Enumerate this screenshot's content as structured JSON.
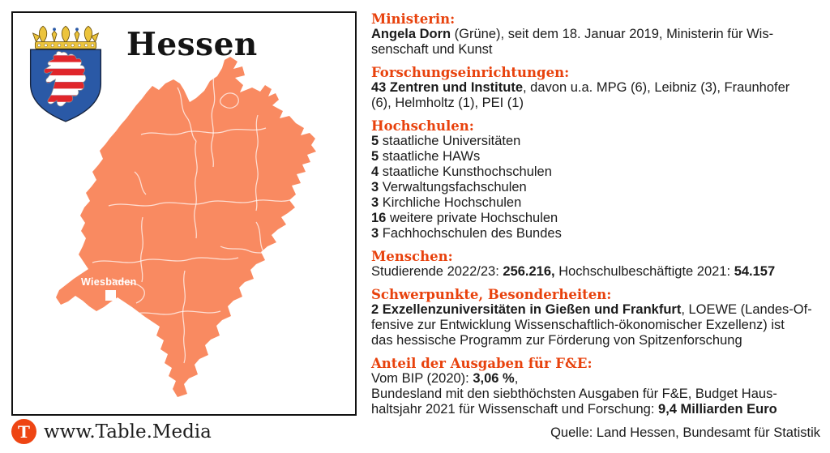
{
  "colors": {
    "map-fill": "#F98A61",
    "map-line": "#FFFFFF",
    "accent": "#E8420D",
    "shield-blue": "#2A59A6",
    "stripe-red": "#E0262B",
    "crown-gold": "#ECC43C",
    "logo-orange": "#EE4513",
    "ink": "#1B1B1B",
    "panel-border": "#111111"
  },
  "panel": {
    "region_name": "Hessen",
    "map": {
      "city_label": "Wiesbaden"
    }
  },
  "info": {
    "sections": [
      {
        "id": "ministerin",
        "header": "Ministerin:",
        "lines": [
          [
            {
              "t": "Angela Dorn",
              "b": true
            },
            {
              "t": " (Grüne), seit dem 18. Januar 2019, Ministerin für Wis-"
            }
          ],
          [
            {
              "t": "senschaft und Kunst"
            }
          ]
        ]
      },
      {
        "id": "forschungseinrichtungen",
        "header": "Forschungseinrichtungen:",
        "lines": [
          [
            {
              "t": "43 Zentren und Institute",
              "b": true
            },
            {
              "t": ", davon u.a. MPG (6), Leibniz (3), Fraunhofer"
            }
          ],
          [
            {
              "t": "(6), Helmholtz (1), PEI (1)"
            }
          ]
        ]
      },
      {
        "id": "hochschulen",
        "header": "Hochschulen:",
        "lines": [
          [
            {
              "t": "5",
              "b": true
            },
            {
              "t": " staatliche Universitäten"
            }
          ],
          [
            {
              "t": "5",
              "b": true
            },
            {
              "t": " staatliche HAWs"
            }
          ],
          [
            {
              "t": "4",
              "b": true
            },
            {
              "t": " staatliche Kunsthochschulen"
            }
          ],
          [
            {
              "t": "3",
              "b": true
            },
            {
              "t": " Verwaltungsfachschulen"
            }
          ],
          [
            {
              "t": "3",
              "b": true
            },
            {
              "t": " Kirchliche Hochschulen"
            }
          ],
          [
            {
              "t": "16",
              "b": true
            },
            {
              "t": " weitere private Hochschulen"
            }
          ],
          [
            {
              "t": "3",
              "b": true
            },
            {
              "t": " Fachhochschulen des Bundes"
            }
          ]
        ]
      },
      {
        "id": "menschen",
        "header": "Menschen:",
        "lines": [
          [
            {
              "t": "Studierende 2022/23: "
            },
            {
              "t": "256.216,",
              "b": true
            },
            {
              "t": " Hochschulbeschäftigte 2021: "
            },
            {
              "t": "54.157",
              "b": true
            }
          ]
        ]
      },
      {
        "id": "schwerpunkte",
        "header": "Schwerpunkte, Besonderheiten:",
        "lines": [
          [
            {
              "t": "2 Exzellenzuniversitäten in Gießen und Frankfurt",
              "b": true
            },
            {
              "t": ", LOEWE (Landes-Of-"
            }
          ],
          [
            {
              "t": "fensive zur Entwicklung Wissenschaftlich-ökonomischer Exzellenz) ist"
            }
          ],
          [
            {
              "t": "das hessische Programm zur Förderung von Spitzenforschung"
            }
          ]
        ]
      },
      {
        "id": "ausgaben-fe",
        "header": "Anteil der Ausgaben für F&E:",
        "lines": [
          [
            {
              "t": "Vom BIP (2020): "
            },
            {
              "t": "3,06 %",
              "b": true
            },
            {
              "t": ","
            }
          ],
          [
            {
              "t": "Bundesland mit den siebthöchsten Ausgaben für F&E, Budget Haus-"
            }
          ],
          [
            {
              "t": "haltsjahr 2021 für Wissenschaft und Forschung: "
            },
            {
              "t": "9,4 Milliarden Euro",
              "b": true
            }
          ]
        ]
      }
    ]
  },
  "footer": {
    "logo_letter": "T",
    "website": "www.Table.Media",
    "source": "Quelle: Land Hessen, Bundesamt für Statistik"
  }
}
